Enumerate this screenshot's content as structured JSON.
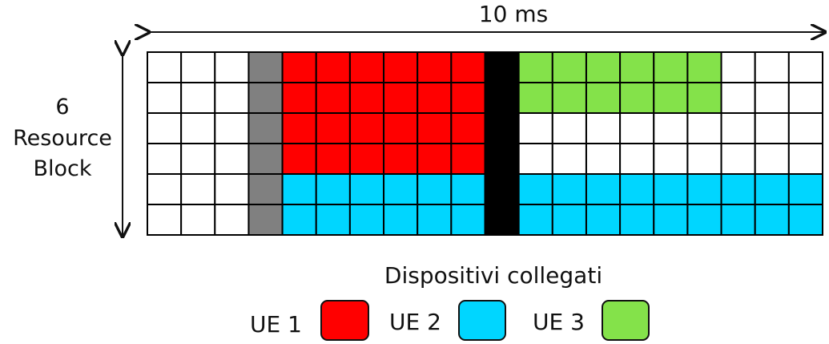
{
  "labels": {
    "top_duration": "10 ms",
    "side_line_1": "6",
    "side_line_2": "Resource",
    "side_line_3": "Block"
  },
  "legend": {
    "title": "Dispositivi collegati",
    "items": [
      {
        "label": "UE 1",
        "color": "#ff0000"
      },
      {
        "label": "UE 2",
        "color": "#00d6ff"
      },
      {
        "label": "UE 3",
        "color": "#84e24a"
      }
    ]
  },
  "grid": {
    "rows": 6,
    "cols": 20,
    "colors": {
      "empty": "#ffffff",
      "gray": "#808080",
      "black": "#000000",
      "ue1": "#ff0000",
      "ue2": "#00d6ff",
      "ue3": "#84e24a"
    },
    "cells": [
      [
        "empty",
        "empty",
        "empty",
        "gray",
        "ue1",
        "ue1",
        "ue1",
        "ue1",
        "ue1",
        "ue1",
        "black",
        "ue3",
        "ue3",
        "ue3",
        "ue3",
        "ue3",
        "ue3",
        "empty",
        "empty",
        "empty"
      ],
      [
        "empty",
        "empty",
        "empty",
        "gray",
        "ue1",
        "ue1",
        "ue1",
        "ue1",
        "ue1",
        "ue1",
        "black",
        "ue3",
        "ue3",
        "ue3",
        "ue3",
        "ue3",
        "ue3",
        "empty",
        "empty",
        "empty"
      ],
      [
        "empty",
        "empty",
        "empty",
        "gray",
        "ue1",
        "ue1",
        "ue1",
        "ue1",
        "ue1",
        "ue1",
        "black",
        "empty",
        "empty",
        "empty",
        "empty",
        "empty",
        "empty",
        "empty",
        "empty",
        "empty"
      ],
      [
        "empty",
        "empty",
        "empty",
        "gray",
        "ue1",
        "ue1",
        "ue1",
        "ue1",
        "ue1",
        "ue1",
        "black",
        "empty",
        "empty",
        "empty",
        "empty",
        "empty",
        "empty",
        "empty",
        "empty",
        "empty"
      ],
      [
        "empty",
        "empty",
        "empty",
        "gray",
        "ue2",
        "ue2",
        "ue2",
        "ue2",
        "ue2",
        "ue2",
        "black",
        "ue2",
        "ue2",
        "ue2",
        "ue2",
        "ue2",
        "ue2",
        "ue2",
        "ue2",
        "ue2"
      ],
      [
        "empty",
        "empty",
        "empty",
        "gray",
        "ue2",
        "ue2",
        "ue2",
        "ue2",
        "ue2",
        "ue2",
        "black",
        "ue2",
        "ue2",
        "ue2",
        "ue2",
        "ue2",
        "ue2",
        "ue2",
        "ue2",
        "ue2"
      ]
    ]
  }
}
